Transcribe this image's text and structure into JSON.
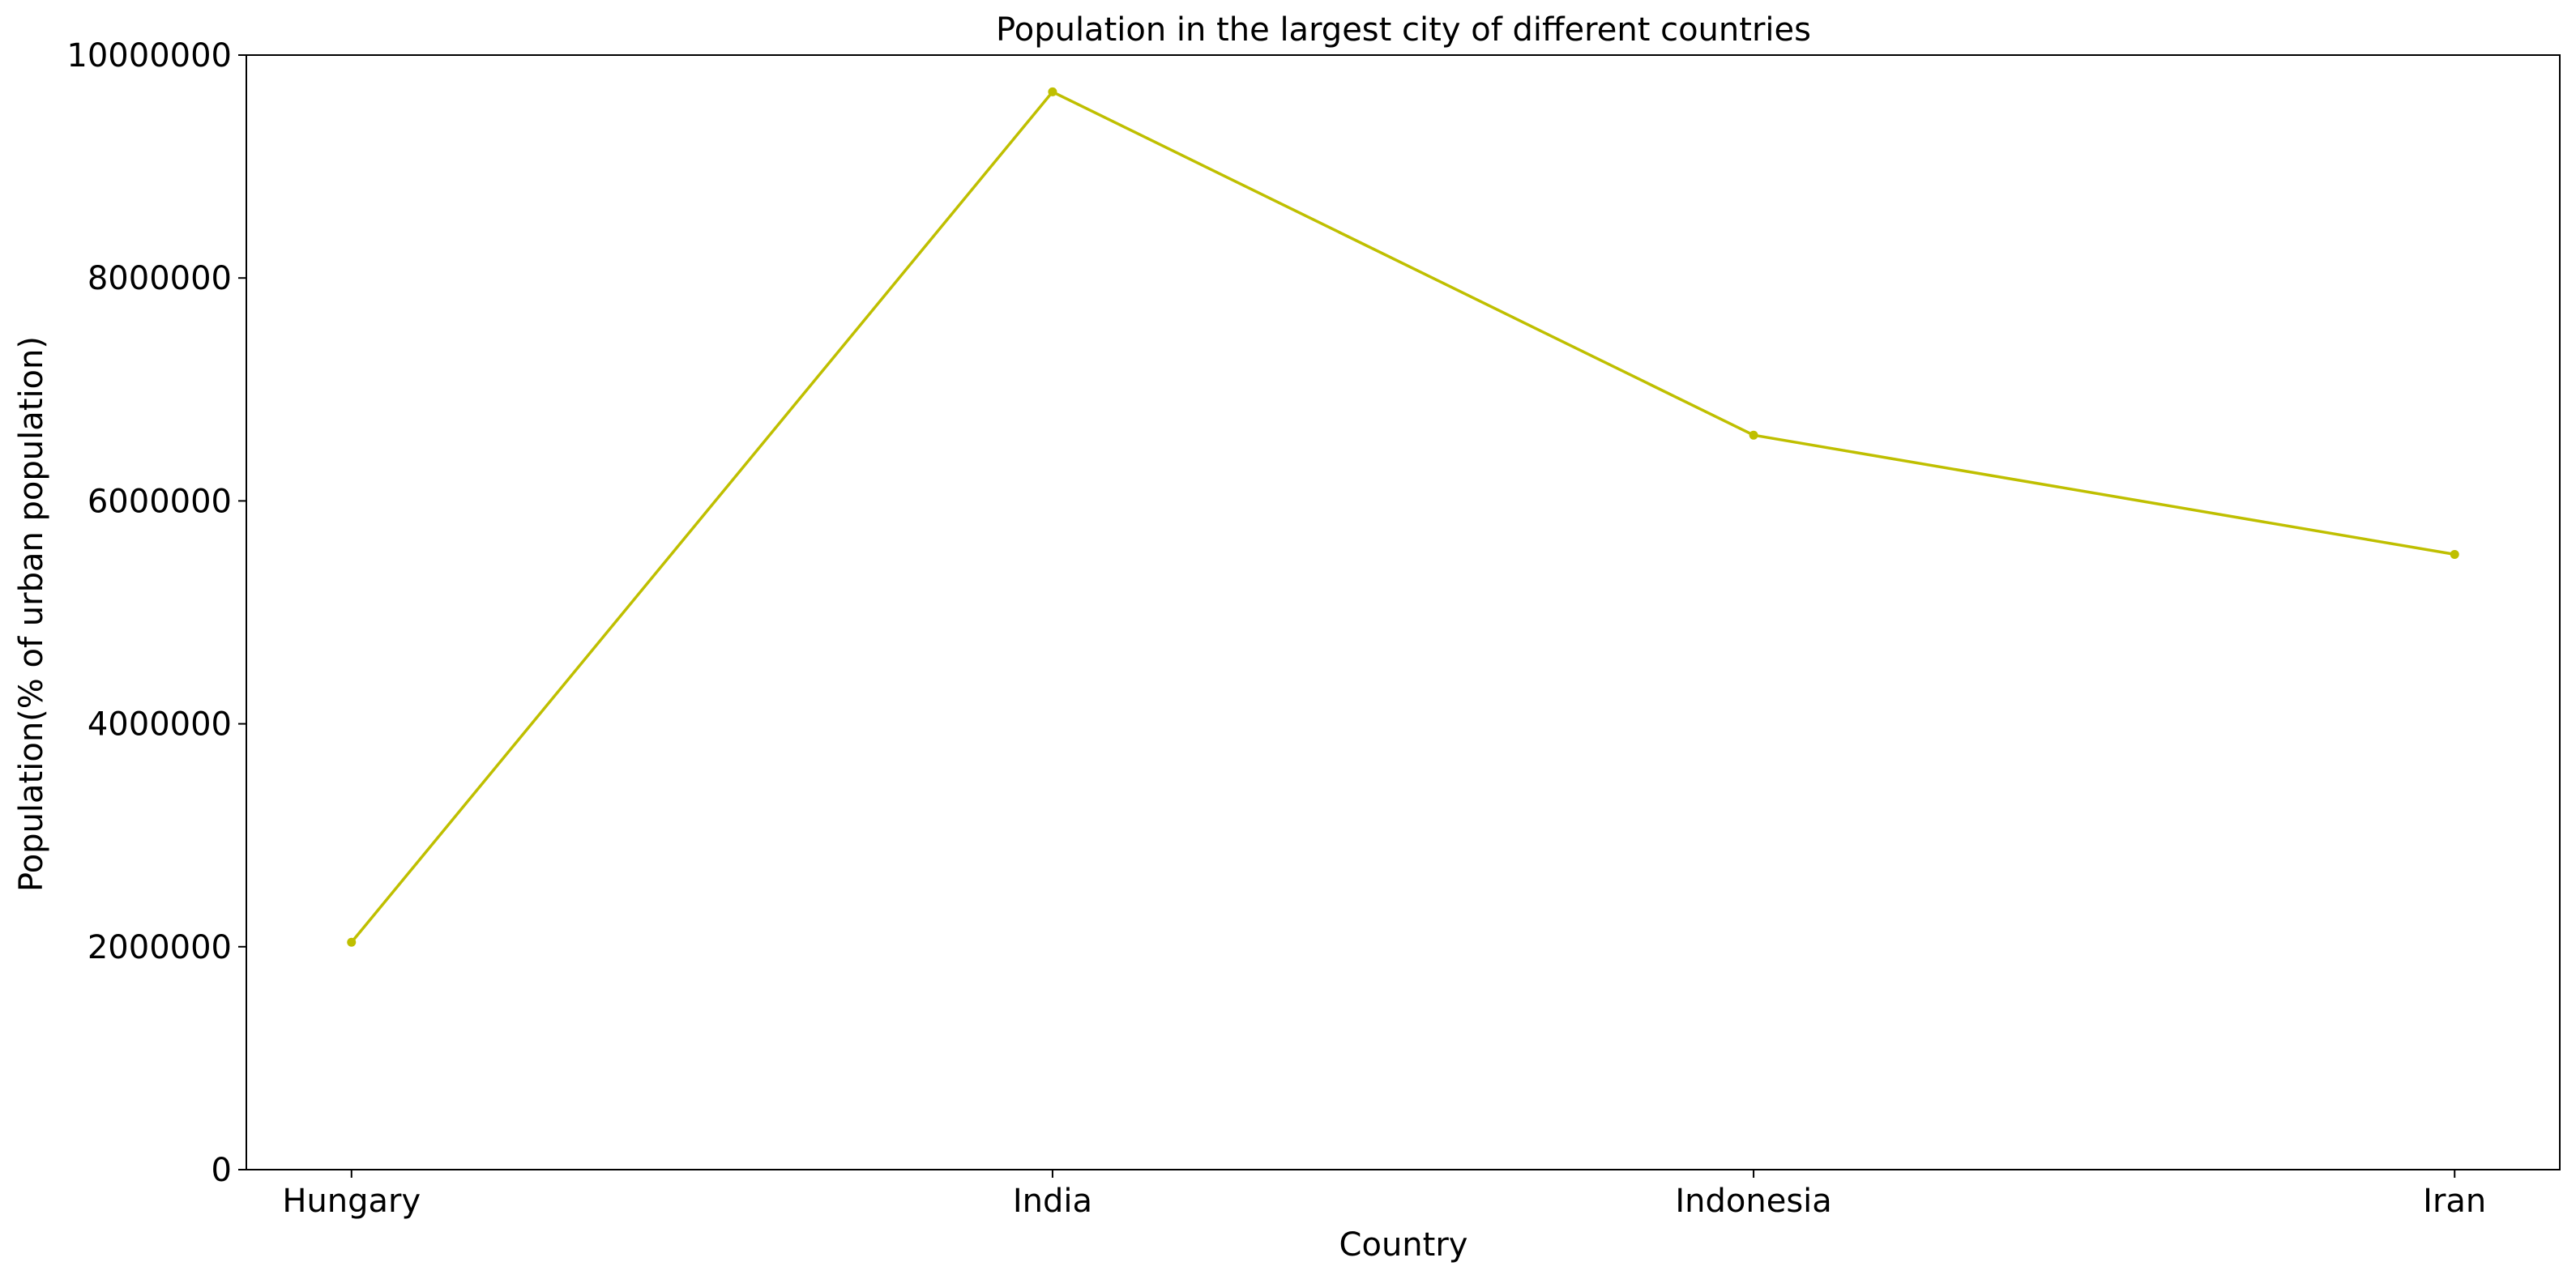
{
  "chart_data": {
    "type": "line",
    "title": "Population in the largest city of different countries",
    "xlabel": "Country",
    "ylabel": "Population(% of urban population)",
    "categories": [
      "Hungary",
      "India",
      "Indonesia",
      "Iran"
    ],
    "series": [
      {
        "values": [
          2040000,
          9670000,
          6590000,
          5520000
        ],
        "color": "#bfbf00",
        "marker": "circle"
      }
    ],
    "ylim": [
      0,
      10000000
    ],
    "yticks": [
      0,
      2000000,
      4000000,
      6000000,
      8000000,
      10000000
    ],
    "ytick_labels": [
      "0",
      "2000000",
      "4000000",
      "6000000",
      "8000000",
      "10000000"
    ],
    "grid": false,
    "legend": "none"
  }
}
